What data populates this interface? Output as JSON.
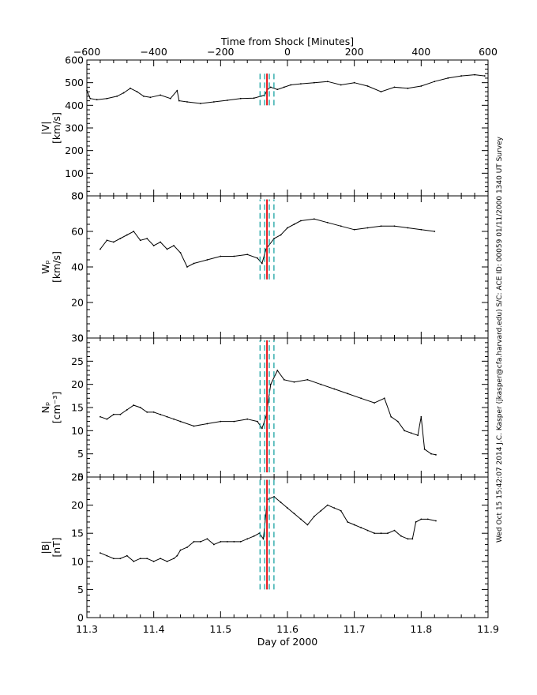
{
  "chart_data": {
    "type": "line",
    "xlabel": "Day of 2000",
    "xlim": [
      11.3,
      11.9
    ],
    "xticks": [
      "11.3",
      "11.4",
      "11.5",
      "11.6",
      "11.7",
      "11.8",
      "11.9"
    ],
    "top_axis": {
      "label": "Time from Shock [Minutes]",
      "range": [
        -600,
        600
      ],
      "ticks": [
        "−600",
        "−400",
        "−200",
        "0",
        "200",
        "400",
        "600"
      ]
    },
    "sidebar_text": "Wed Oct 15 15:42:07 2014   J.C. Kasper (jkasper@cfa.harvard.edu)   S/C: ACE  ID: 00059  01/11/2000  1340 UT Survey",
    "shock_day": 11.5694,
    "marker_offsets_day": [
      -0.0104,
      -0.0035,
      0.0035,
      0.0104
    ],
    "panels": [
      {
        "id": "v",
        "ylabel_top": "|V|",
        "ylabel_bottom": "[km/s]",
        "ylim": [
          0,
          600
        ],
        "yticks": [
          "0",
          "100",
          "200",
          "300",
          "400",
          "500",
          "600"
        ],
        "marker_span": [
          400,
          540
        ],
        "series": [
          {
            "x": 11.3,
            "y": 465
          },
          {
            "x": 11.305,
            "y": 430
          },
          {
            "x": 11.315,
            "y": 425
          },
          {
            "x": 11.33,
            "y": 430
          },
          {
            "x": 11.345,
            "y": 440
          },
          {
            "x": 11.355,
            "y": 455
          },
          {
            "x": 11.365,
            "y": 475
          },
          {
            "x": 11.375,
            "y": 460
          },
          {
            "x": 11.385,
            "y": 440
          },
          {
            "x": 11.395,
            "y": 435
          },
          {
            "x": 11.41,
            "y": 445
          },
          {
            "x": 11.425,
            "y": 430
          },
          {
            "x": 11.435,
            "y": 465
          },
          {
            "x": 11.438,
            "y": 420
          },
          {
            "x": 11.45,
            "y": 415
          },
          {
            "x": 11.47,
            "y": 408
          },
          {
            "x": 11.49,
            "y": 415
          },
          {
            "x": 11.51,
            "y": 422
          },
          {
            "x": 11.53,
            "y": 430
          },
          {
            "x": 11.55,
            "y": 432
          },
          {
            "x": 11.56,
            "y": 440
          },
          {
            "x": 11.566,
            "y": 445
          },
          {
            "x": 11.57,
            "y": 470
          },
          {
            "x": 11.575,
            "y": 480
          },
          {
            "x": 11.585,
            "y": 470
          },
          {
            "x": 11.595,
            "y": 480
          },
          {
            "x": 11.605,
            "y": 490
          },
          {
            "x": 11.62,
            "y": 495
          },
          {
            "x": 11.64,
            "y": 500
          },
          {
            "x": 11.66,
            "y": 505
          },
          {
            "x": 11.68,
            "y": 490
          },
          {
            "x": 11.7,
            "y": 500
          },
          {
            "x": 11.72,
            "y": 485
          },
          {
            "x": 11.74,
            "y": 460
          },
          {
            "x": 11.76,
            "y": 480
          },
          {
            "x": 11.78,
            "y": 475
          },
          {
            "x": 11.8,
            "y": 485
          },
          {
            "x": 11.82,
            "y": 505
          },
          {
            "x": 11.84,
            "y": 520
          },
          {
            "x": 11.86,
            "y": 530
          },
          {
            "x": 11.88,
            "y": 535
          },
          {
            "x": 11.895,
            "y": 530
          }
        ]
      },
      {
        "id": "w",
        "ylabel_top": "Wₚ",
        "ylabel_bottom": "[km/s]",
        "ylim": [
          0,
          80
        ],
        "yticks": [
          "0",
          "20",
          "40",
          "60",
          "80"
        ],
        "marker_span": [
          33,
          78
        ],
        "series": [
          {
            "x": 11.32,
            "y": 50
          },
          {
            "x": 11.33,
            "y": 55
          },
          {
            "x": 11.34,
            "y": 54
          },
          {
            "x": 11.35,
            "y": 56
          },
          {
            "x": 11.36,
            "y": 58
          },
          {
            "x": 11.37,
            "y": 60
          },
          {
            "x": 11.38,
            "y": 55
          },
          {
            "x": 11.39,
            "y": 56
          },
          {
            "x": 11.4,
            "y": 52
          },
          {
            "x": 11.41,
            "y": 54
          },
          {
            "x": 11.42,
            "y": 50
          },
          {
            "x": 11.43,
            "y": 52
          },
          {
            "x": 11.44,
            "y": 48
          },
          {
            "x": 11.45,
            "y": 40
          },
          {
            "x": 11.46,
            "y": 42
          },
          {
            "x": 11.48,
            "y": 44
          },
          {
            "x": 11.5,
            "y": 46
          },
          {
            "x": 11.52,
            "y": 46
          },
          {
            "x": 11.54,
            "y": 47
          },
          {
            "x": 11.555,
            "y": 45
          },
          {
            "x": 11.562,
            "y": 42
          },
          {
            "x": 11.568,
            "y": 50
          },
          {
            "x": 11.58,
            "y": 56
          },
          {
            "x": 11.59,
            "y": 58
          },
          {
            "x": 11.6,
            "y": 62
          },
          {
            "x": 11.61,
            "y": 64
          },
          {
            "x": 11.62,
            "y": 66
          },
          {
            "x": 11.64,
            "y": 67
          },
          {
            "x": 11.66,
            "y": 65
          },
          {
            "x": 11.68,
            "y": 63
          },
          {
            "x": 11.7,
            "y": 61
          },
          {
            "x": 11.72,
            "y": 62
          },
          {
            "x": 11.74,
            "y": 63
          },
          {
            "x": 11.76,
            "y": 63
          },
          {
            "x": 11.78,
            "y": 62
          },
          {
            "x": 11.8,
            "y": 61
          },
          {
            "x": 11.82,
            "y": 60
          }
        ]
      },
      {
        "id": "n",
        "ylabel_top": "Nₚ",
        "ylabel_bottom": "[cm⁻³]",
        "ylim": [
          0,
          30
        ],
        "yticks": [
          "0",
          "5",
          "10",
          "15",
          "20",
          "25",
          "30"
        ],
        "marker_span": [
          1,
          29.5
        ],
        "series": [
          {
            "x": 11.32,
            "y": 13
          },
          {
            "x": 11.33,
            "y": 12.5
          },
          {
            "x": 11.34,
            "y": 13.5
          },
          {
            "x": 11.35,
            "y": 13.5
          },
          {
            "x": 11.36,
            "y": 14.5
          },
          {
            "x": 11.37,
            "y": 15.5
          },
          {
            "x": 11.38,
            "y": 15
          },
          {
            "x": 11.39,
            "y": 14
          },
          {
            "x": 11.4,
            "y": 14
          },
          {
            "x": 11.41,
            "y": 13.5
          },
          {
            "x": 11.42,
            "y": 13
          },
          {
            "x": 11.43,
            "y": 12.5
          },
          {
            "x": 11.44,
            "y": 12
          },
          {
            "x": 11.46,
            "y": 11
          },
          {
            "x": 11.48,
            "y": 11.5
          },
          {
            "x": 11.5,
            "y": 12
          },
          {
            "x": 11.52,
            "y": 12
          },
          {
            "x": 11.54,
            "y": 12.5
          },
          {
            "x": 11.555,
            "y": 12
          },
          {
            "x": 11.562,
            "y": 10.5
          },
          {
            "x": 11.568,
            "y": 13
          },
          {
            "x": 11.575,
            "y": 20
          },
          {
            "x": 11.585,
            "y": 23
          },
          {
            "x": 11.595,
            "y": 21
          },
          {
            "x": 11.61,
            "y": 20.5
          },
          {
            "x": 11.63,
            "y": 21
          },
          {
            "x": 11.65,
            "y": 20
          },
          {
            "x": 11.67,
            "y": 19
          },
          {
            "x": 11.69,
            "y": 18
          },
          {
            "x": 11.71,
            "y": 17
          },
          {
            "x": 11.73,
            "y": 16
          },
          {
            "x": 11.745,
            "y": 17
          },
          {
            "x": 11.755,
            "y": 13
          },
          {
            "x": 11.765,
            "y": 12
          },
          {
            "x": 11.775,
            "y": 10
          },
          {
            "x": 11.785,
            "y": 9.5
          },
          {
            "x": 11.795,
            "y": 9
          },
          {
            "x": 11.8,
            "y": 13
          },
          {
            "x": 11.805,
            "y": 6
          },
          {
            "x": 11.815,
            "y": 5
          },
          {
            "x": 11.822,
            "y": 4.8
          }
        ]
      },
      {
        "id": "b",
        "ylabel_top": "|B|",
        "ylabel_bottom": "[nT]",
        "ylim": [
          0,
          25
        ],
        "yticks": [
          "0",
          "5",
          "10",
          "15",
          "20",
          "25"
        ],
        "marker_span": [
          5,
          24.5
        ],
        "series": [
          {
            "x": 11.32,
            "y": 11.5
          },
          {
            "x": 11.33,
            "y": 11
          },
          {
            "x": 11.34,
            "y": 10.5
          },
          {
            "x": 11.35,
            "y": 10.5
          },
          {
            "x": 11.36,
            "y": 11
          },
          {
            "x": 11.37,
            "y": 10
          },
          {
            "x": 11.38,
            "y": 10.5
          },
          {
            "x": 11.39,
            "y": 10.5
          },
          {
            "x": 11.4,
            "y": 10
          },
          {
            "x": 11.41,
            "y": 10.5
          },
          {
            "x": 11.42,
            "y": 10
          },
          {
            "x": 11.43,
            "y": 10.5
          },
          {
            "x": 11.435,
            "y": 11
          },
          {
            "x": 11.44,
            "y": 12
          },
          {
            "x": 11.45,
            "y": 12.5
          },
          {
            "x": 11.46,
            "y": 13.5
          },
          {
            "x": 11.47,
            "y": 13.5
          },
          {
            "x": 11.48,
            "y": 14
          },
          {
            "x": 11.49,
            "y": 13
          },
          {
            "x": 11.5,
            "y": 13.5
          },
          {
            "x": 11.51,
            "y": 13.5
          },
          {
            "x": 11.52,
            "y": 13.5
          },
          {
            "x": 11.53,
            "y": 13.5
          },
          {
            "x": 11.54,
            "y": 14
          },
          {
            "x": 11.55,
            "y": 14.5
          },
          {
            "x": 11.558,
            "y": 15
          },
          {
            "x": 11.564,
            "y": 14
          },
          {
            "x": 11.57,
            "y": 21
          },
          {
            "x": 11.58,
            "y": 21.5
          },
          {
            "x": 11.59,
            "y": 20.5
          },
          {
            "x": 11.6,
            "y": 19.5
          },
          {
            "x": 11.61,
            "y": 18.5
          },
          {
            "x": 11.62,
            "y": 17.5
          },
          {
            "x": 11.63,
            "y": 16.5
          },
          {
            "x": 11.64,
            "y": 18
          },
          {
            "x": 11.65,
            "y": 19
          },
          {
            "x": 11.66,
            "y": 20
          },
          {
            "x": 11.67,
            "y": 19.5
          },
          {
            "x": 11.68,
            "y": 19
          },
          {
            "x": 11.69,
            "y": 17
          },
          {
            "x": 11.7,
            "y": 16.5
          },
          {
            "x": 11.71,
            "y": 16
          },
          {
            "x": 11.72,
            "y": 15.5
          },
          {
            "x": 11.73,
            "y": 15
          },
          {
            "x": 11.74,
            "y": 15
          },
          {
            "x": 11.75,
            "y": 15
          },
          {
            "x": 11.76,
            "y": 15.5
          },
          {
            "x": 11.77,
            "y": 14.5
          },
          {
            "x": 11.78,
            "y": 14
          },
          {
            "x": 11.787,
            "y": 14
          },
          {
            "x": 11.792,
            "y": 17
          },
          {
            "x": 11.8,
            "y": 17.5
          },
          {
            "x": 11.81,
            "y": 17.5
          },
          {
            "x": 11.822,
            "y": 17.2
          }
        ]
      }
    ]
  }
}
